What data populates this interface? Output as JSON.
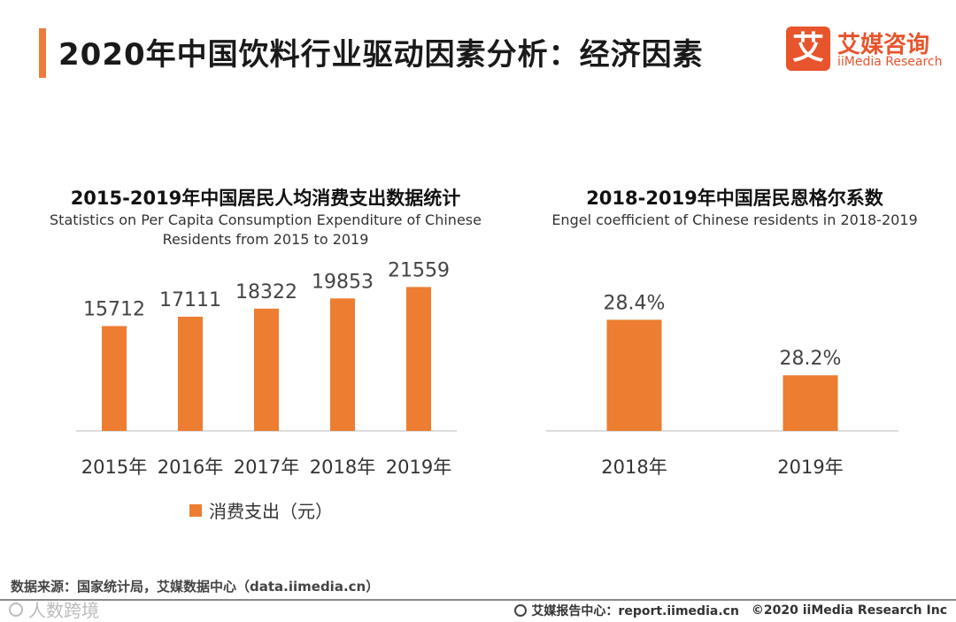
{
  "page": {
    "title": "2020年中国饮料行业驱动因素分析：经济因素"
  },
  "logo": {
    "mark": "艾",
    "cn": "艾媒咨询",
    "en": "iiMedia Research"
  },
  "colors": {
    "accent": "#f07c3a",
    "bar": "#ed7d31",
    "brand": "#e8542c"
  },
  "chart_data": [
    {
      "type": "bar",
      "title": "2015-2019年中国居民人均消费支出数据统计",
      "subtitle_line1": "Statistics on Per Capita Consumption Expenditure of Chinese",
      "subtitle_line2": "Residents from 2015 to 2019",
      "categories": [
        "2015年",
        "2016年",
        "2017年",
        "2018年",
        "2019年"
      ],
      "values": [
        15712,
        17111,
        18322,
        19853,
        21559
      ],
      "labels": [
        "15712",
        "17111",
        "18322",
        "19853",
        "21559"
      ],
      "legend": "消费支出（元）",
      "ylim": [
        0,
        24000
      ],
      "xlabel": "",
      "ylabel": ""
    },
    {
      "type": "bar",
      "title": "2018-2019年中国居民恩格尔系数",
      "subtitle_line1": "Engel coefficient of Chinese residents in 2018-2019",
      "categories": [
        "2018年",
        "2019年"
      ],
      "values": [
        28.4,
        28.2
      ],
      "labels": [
        "28.4%",
        "28.2%"
      ],
      "ylim": [
        28.0,
        28.5
      ],
      "xlabel": "",
      "ylabel": ""
    }
  ],
  "footer": {
    "source": "数据来源：国家统计局，艾媒数据中心（data.iimedia.cn）",
    "watermark": "人数跨境",
    "report_center": "艾媒报告中心：report.iimedia.cn",
    "copyright": "©2020  iiMedia Research  Inc"
  }
}
